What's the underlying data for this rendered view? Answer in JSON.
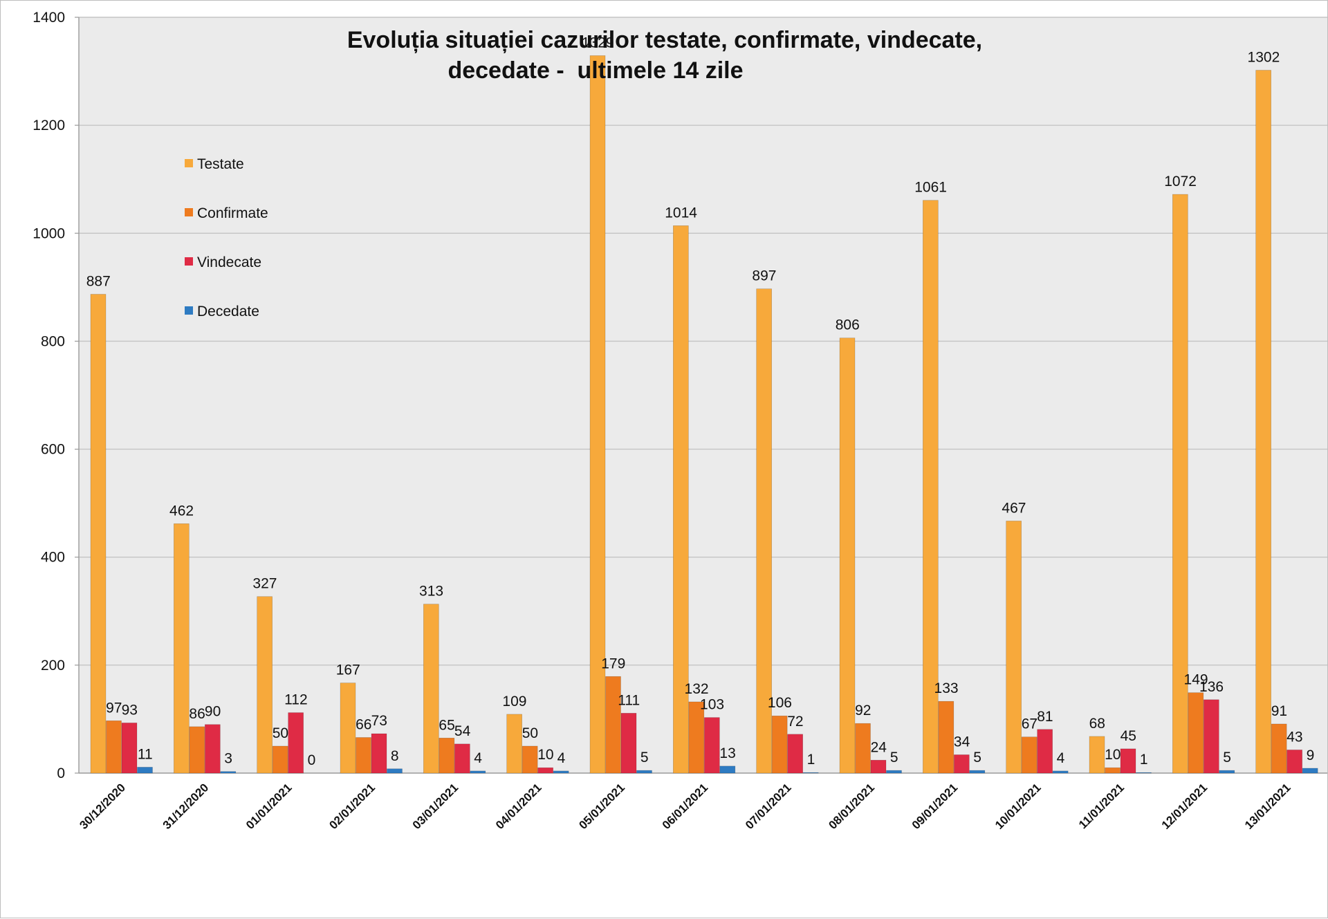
{
  "chart_data": {
    "type": "bar",
    "title": "Evoluția situației cazurilor testate, confirmate, vindecate,",
    "subtitle": "decedate -  ultimele 14 zile",
    "xlabel": "",
    "ylabel": "",
    "ylim": [
      0,
      1400
    ],
    "yticks": [
      "0",
      "200",
      "400",
      "600",
      "800",
      "1000",
      "1200",
      "1400"
    ],
    "grid": true,
    "legend_position": "left",
    "categories": [
      "30/12/2020",
      "31/12/2020",
      "01/01/2021",
      "02/01/2021",
      "03/01/2021",
      "04/01/2021",
      "05/01/2021",
      "06/01/2021",
      "07/01/2021",
      "08/01/2021",
      "09/01/2021",
      "10/01/2021",
      "11/01/2021",
      "12/01/2021",
      "13/01/2021"
    ],
    "series": [
      {
        "name": "Testate",
        "color": "#F7A93B",
        "values": [
          887,
          462,
          327,
          167,
          313,
          109,
          1329,
          1014,
          897,
          806,
          1061,
          467,
          68,
          1072,
          1302
        ],
        "labels": [
          "887",
          "462",
          "327",
          "167",
          "313",
          "109",
          "1329",
          "1014",
          "897",
          "806",
          "1061",
          "467",
          "68",
          "1072",
          "1302"
        ]
      },
      {
        "name": "Confirmate",
        "color": "#EE7B1F",
        "values": [
          97,
          86,
          50,
          66,
          65,
          50,
          179,
          132,
          106,
          92,
          133,
          67,
          10,
          149,
          91
        ],
        "labels": [
          "97",
          "86",
          "50",
          "66",
          "65",
          "50",
          "179",
          "132",
          "106",
          "92",
          "133",
          "67",
          "10",
          "149",
          "91"
        ]
      },
      {
        "name": "Vindecate",
        "color": "#DF2B45",
        "values": [
          93,
          90,
          112,
          73,
          54,
          10,
          111,
          103,
          72,
          24,
          34,
          81,
          45,
          136,
          43
        ],
        "labels": [
          "93",
          "90",
          "112",
          "73",
          "54",
          "10",
          "111",
          "103",
          "72",
          "24",
          "34",
          "81",
          "45",
          "136",
          "43"
        ]
      },
      {
        "name": "Decedate",
        "color": "#2E7BC2",
        "values": [
          11,
          3,
          0,
          8,
          4,
          4,
          5,
          13,
          1,
          5,
          5,
          4,
          1,
          5,
          9
        ],
        "labels": [
          "11",
          "3",
          "0",
          "8",
          "4",
          "4",
          "5",
          "13",
          "1",
          "5",
          "5",
          "4",
          "1",
          "5",
          "9"
        ]
      }
    ],
    "colors": {
      "plot_background": "#EBEBEB",
      "gridline": "#C4C4C4",
      "axis": "#9a9a9a"
    }
  }
}
